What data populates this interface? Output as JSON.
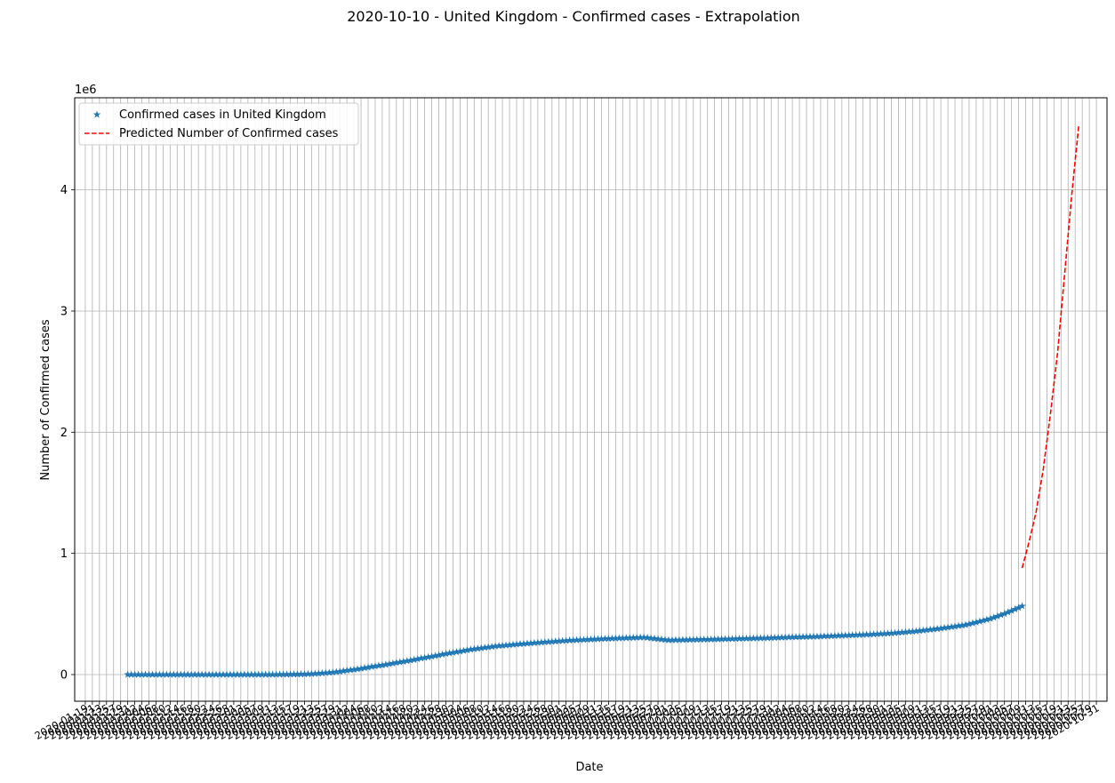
{
  "chart_data": {
    "type": "line",
    "title": "2020-10-10 - United Kingdom - Confirmed cases - Extrapolation",
    "xlabel": "Date",
    "ylabel": "Number of Confirmed cases",
    "y_offset_text": "1e6",
    "grid": true,
    "legend_position": "upper-left",
    "x_range": [
      "2020-01-16",
      "2020-11-03"
    ],
    "ylim": [
      -220000,
      4760000
    ],
    "y_ticks": [
      0,
      1000000,
      2000000,
      3000000,
      4000000
    ],
    "y_tick_labels": [
      "0",
      "1",
      "2",
      "3",
      "4"
    ],
    "x_tick_start": "2020-01-19",
    "x_tick_step_days": 2,
    "x_tick_end": "2020-10-31",
    "x_tick_first_label": "2020-01-19",
    "x_tick_last_label": "2020-10-31",
    "colors": {
      "observed": "#1f77b4",
      "predicted": "#ff0000",
      "grid": "#b0b0b0"
    },
    "series": [
      {
        "name": "Confirmed cases in United Kingdom",
        "style": "star-markers",
        "color": "#1f77b4",
        "start_date": "2020-01-31",
        "end_date": "2020-10-10",
        "points": [
          [
            "2020-01-31",
            2
          ],
          [
            "2020-02-20",
            9
          ],
          [
            "2020-03-05",
            115
          ],
          [
            "2020-03-12",
            590
          ],
          [
            "2020-03-19",
            2700
          ],
          [
            "2020-03-26",
            11800
          ],
          [
            "2020-04-02",
            34000
          ],
          [
            "2020-04-09",
            65000
          ],
          [
            "2020-04-16",
            98000
          ],
          [
            "2020-04-23",
            134000
          ],
          [
            "2020-04-30",
            172000
          ],
          [
            "2020-05-07",
            207000
          ],
          [
            "2020-05-14",
            234000
          ],
          [
            "2020-05-21",
            252000
          ],
          [
            "2020-05-28",
            268000
          ],
          [
            "2020-06-04",
            282000
          ],
          [
            "2020-06-11",
            292000
          ],
          [
            "2020-06-18",
            300000
          ],
          [
            "2020-06-25",
            307000
          ],
          [
            "2020-07-02",
            284000
          ],
          [
            "2020-07-09",
            288000
          ],
          [
            "2020-07-16",
            292000
          ],
          [
            "2020-07-23",
            297000
          ],
          [
            "2020-07-30",
            302000
          ],
          [
            "2020-08-06",
            309000
          ],
          [
            "2020-08-13",
            314000
          ],
          [
            "2020-08-20",
            322000
          ],
          [
            "2020-08-27",
            330000
          ],
          [
            "2020-09-03",
            341000
          ],
          [
            "2020-09-10",
            358000
          ],
          [
            "2020-09-17",
            381000
          ],
          [
            "2020-09-24",
            410000
          ],
          [
            "2020-10-01",
            461000
          ],
          [
            "2020-10-05",
            502000
          ],
          [
            "2020-10-10",
            565000
          ]
        ]
      },
      {
        "name": "Predicted Number of Confirmed cases",
        "style": "dashed-line",
        "color": "#ff0000",
        "points": [
          [
            "2020-10-10",
            880000
          ],
          [
            "2020-10-12",
            1100000
          ],
          [
            "2020-10-14",
            1350000
          ],
          [
            "2020-10-16",
            1700000
          ],
          [
            "2020-10-18",
            2150000
          ],
          [
            "2020-10-20",
            2650000
          ],
          [
            "2020-10-22",
            3300000
          ],
          [
            "2020-10-24",
            3950000
          ],
          [
            "2020-10-26",
            4530000
          ]
        ]
      }
    ]
  }
}
